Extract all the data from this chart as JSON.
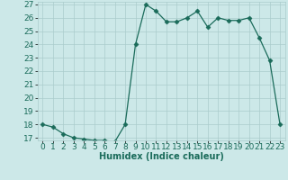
{
  "x": [
    0,
    1,
    2,
    3,
    4,
    5,
    6,
    7,
    8,
    9,
    10,
    11,
    12,
    13,
    14,
    15,
    16,
    17,
    18,
    19,
    20,
    21,
    22,
    23
  ],
  "y": [
    18.0,
    17.8,
    17.3,
    17.0,
    16.9,
    16.8,
    16.8,
    16.7,
    18.0,
    24.0,
    27.0,
    26.5,
    25.7,
    25.7,
    26.0,
    26.5,
    25.3,
    26.0,
    25.8,
    25.8,
    26.0,
    24.5,
    22.8,
    18.0
  ],
  "xlabel": "Humidex (Indice chaleur)",
  "ylim": [
    17,
    27
  ],
  "xlim": [
    -0.5,
    23.5
  ],
  "yticks": [
    17,
    18,
    19,
    20,
    21,
    22,
    23,
    24,
    25,
    26,
    27
  ],
  "xticks": [
    0,
    1,
    2,
    3,
    4,
    5,
    6,
    7,
    8,
    9,
    10,
    11,
    12,
    13,
    14,
    15,
    16,
    17,
    18,
    19,
    20,
    21,
    22,
    23
  ],
  "line_color": "#1a6b5a",
  "marker": "D",
  "marker_size": 2.5,
  "bg_color": "#cce8e8",
  "grid_color": "#aacccc",
  "axis_fontsize": 7,
  "tick_fontsize": 6.5
}
